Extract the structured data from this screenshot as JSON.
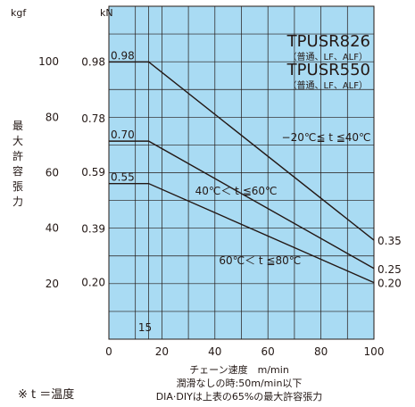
{
  "chart_data": {
    "type": "line",
    "model_names": [
      "TPUSR826",
      "TPUSR550"
    ],
    "variant_note": "（普通、LF、ALF）",
    "x_ticks": [
      "0",
      "20",
      "40",
      "60",
      "80",
      "100"
    ],
    "x_extra_tick": "15",
    "xlabel": "チェーン速度　m/min",
    "xlim": [
      0,
      100
    ],
    "y_unit_kgf": "kgf",
    "y_unit_kn": "kN",
    "y_ticks_kgf": [
      "20",
      "40",
      "60",
      "80",
      "100"
    ],
    "y_ticks_kn": [
      "0.20",
      "0.39",
      "0.59",
      "0.78",
      "0.98"
    ],
    "ylabel": "最大許容張力",
    "ylim_kgf": [
      0,
      120
    ],
    "grid": true,
    "series": [
      {
        "name": "−20℃≦ t ≦40℃",
        "x": [
          0,
          15,
          100
        ],
        "y_kn": [
          0.98,
          0.98,
          0.35
        ],
        "start_label": "0.98",
        "end_label": "0.35"
      },
      {
        "name": "40℃＜ t ≦60℃",
        "x": [
          0,
          15,
          100
        ],
        "y_kn": [
          0.7,
          0.7,
          0.25
        ],
        "start_label": "0.70",
        "end_label": "0.25"
      },
      {
        "name": "60℃＜ t ≦80℃",
        "x": [
          0,
          15,
          100
        ],
        "y_kn": [
          0.55,
          0.55,
          0.2
        ],
        "start_label": "0.55",
        "end_label": "0.20"
      }
    ],
    "notes": [
      "潤滑なしの時:50m/min以下",
      "DIA·DIYは上表の65%の最大許容張力"
    ],
    "footnote": "※ t ＝温度",
    "colors": {
      "plot_bg": "#a9dbf3",
      "grid": "#231815",
      "line": "#231815"
    }
  }
}
